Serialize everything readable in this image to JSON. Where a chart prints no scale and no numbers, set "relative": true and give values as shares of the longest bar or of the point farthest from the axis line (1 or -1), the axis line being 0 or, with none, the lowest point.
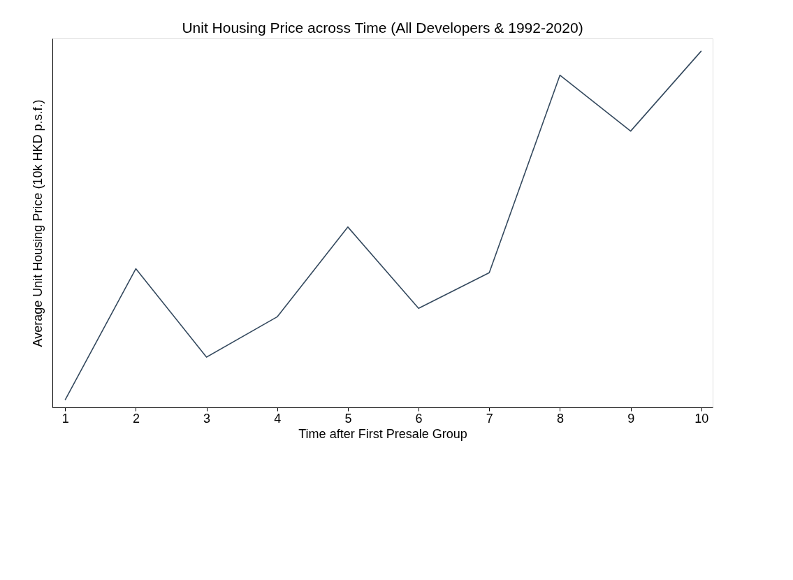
{
  "chart_data": {
    "type": "line",
    "title": "Unit Housing Price across Time (All Developers & 1992-2020)",
    "xlabel": "Time after First Presale Group",
    "ylabel": "Average Unit Housing Price (10k HKD p.s.f.)",
    "relative": true,
    "x": [
      1,
      2,
      3,
      4,
      5,
      6,
      7,
      8,
      9,
      10
    ],
    "series": [
      {
        "color": "#34495e",
        "values": [
          0.021,
          0.389,
          0.141,
          0.254,
          0.506,
          0.278,
          0.378,
          0.932,
          0.775,
          1
        ]
      }
    ],
    "xlim": [
      0.82,
      10.16
    ],
    "xticks": [
      1,
      2,
      3,
      4,
      5,
      6,
      7,
      8,
      9,
      10
    ],
    "grid": false,
    "marker": "none",
    "line_style": "solid"
  }
}
